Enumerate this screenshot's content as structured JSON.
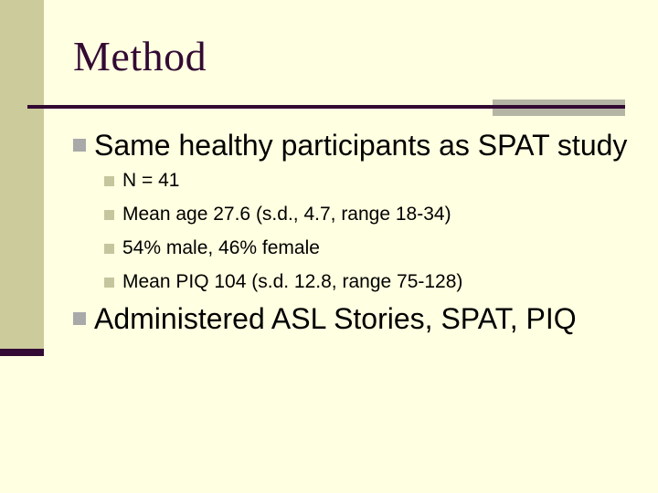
{
  "slide": {
    "title": "Method",
    "bullets": [
      {
        "level": 1,
        "text": "Same healthy participants as SPAT study"
      },
      {
        "level": 2,
        "text": "N = 41"
      },
      {
        "level": 2,
        "text": "Mean age 27.6 (s.d., 4.7, range 18-34)"
      },
      {
        "level": 2,
        "text": "54% male, 46% female"
      },
      {
        "level": 2,
        "text": "Mean PIQ 104 (s.d. 12.8, range 75-128)"
      },
      {
        "level": 1,
        "text": "Administered ASL Stories, SPAT, PIQ"
      }
    ],
    "colors": {
      "background": "#FFFFE1",
      "sidebar": "#CBCB9C",
      "accent_dark": "#330A33",
      "bullet_l1": "#A9A9A9",
      "bullet_l2": "#C6C69E",
      "rule_highlight": "#B5B5A5",
      "body_text": "#000000"
    }
  }
}
